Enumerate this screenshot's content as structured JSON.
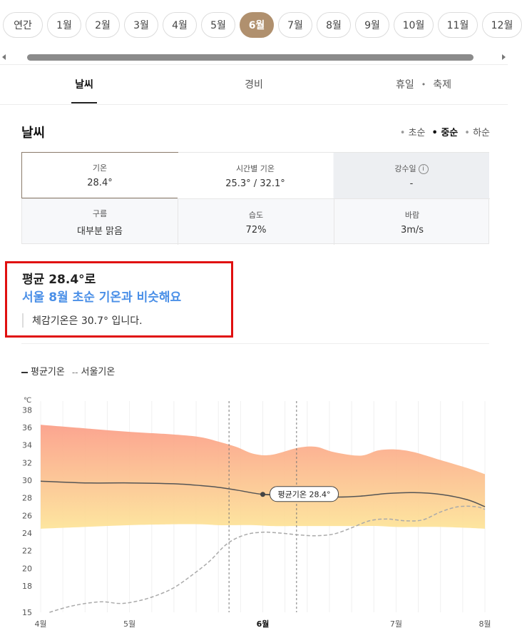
{
  "months": {
    "items": [
      "연간",
      "1월",
      "2월",
      "3월",
      "4월",
      "5월",
      "6월",
      "7월",
      "8월",
      "9월",
      "10월",
      "11월",
      "12월"
    ],
    "active_index": 6
  },
  "tabs": [
    {
      "label": "날씨",
      "active": true
    },
    {
      "label": "경비",
      "active": false
    },
    {
      "label": "휴일",
      "active": false
    },
    {
      "label": "축제",
      "active": false
    }
  ],
  "tab_separator": "•",
  "weather": {
    "title": "날씨",
    "periods": [
      {
        "label": "초순",
        "active": false
      },
      {
        "label": "중순",
        "active": true
      },
      {
        "label": "하순",
        "active": false
      }
    ],
    "period_bullet": "•",
    "cells": [
      {
        "label": "기온",
        "value": "28.4°",
        "selected": true
      },
      {
        "label": "시간별 기온",
        "value": "25.3° / 32.1°"
      },
      {
        "label": "강수일",
        "value": "-",
        "info_icon": "info-icon"
      },
      {
        "label": "구름",
        "value": "대부분 맑음"
      },
      {
        "label": "습도",
        "value": "72%"
      },
      {
        "label": "바람",
        "value": "3m/s"
      }
    ]
  },
  "summary": {
    "line1": "평균 28.4°로",
    "line2": "서울 8월 초순 기온과 비슷해요",
    "line3": "체감기온은 30.7° 입니다.",
    "accent_color": "#4a8fe7",
    "highlight_border_color": "#e01010"
  },
  "legend": {
    "solid_label": "평균기온",
    "dashed_label": "서울기온",
    "dash_glyph": "--"
  },
  "chart_data": {
    "type": "area",
    "unit_label": "℃",
    "y_ticks": [
      38,
      36,
      34,
      32,
      30,
      28,
      26,
      24,
      22,
      20,
      18,
      15
    ],
    "ylim": [
      15,
      39
    ],
    "x_labels": [
      {
        "label": "4월",
        "x": 0
      },
      {
        "label": "5월",
        "x": 1
      },
      {
        "label": "6월",
        "x": 2.5,
        "bold": true
      },
      {
        "label": "7월",
        "x": 4
      },
      {
        "label": "8월",
        "x": 5
      }
    ],
    "x_range": [
      0,
      5
    ],
    "band": {
      "x": [
        0,
        0.5,
        1,
        1.5,
        1.8,
        2.0,
        2.2,
        2.4,
        2.6,
        2.9,
        3.1,
        3.3,
        3.6,
        3.8,
        4.0,
        4.2,
        4.5,
        4.8,
        5
      ],
      "upper": [
        36.3,
        35.9,
        35.5,
        35.2,
        34.9,
        34.4,
        33.8,
        33.0,
        32.9,
        33.7,
        33.8,
        33.2,
        32.8,
        33.4,
        33.5,
        33.2,
        32.3,
        31.4,
        30.7
      ],
      "lower": [
        24.5,
        24.7,
        24.9,
        25.0,
        25.0,
        24.9,
        24.9,
        24.9,
        24.8,
        24.8,
        24.8,
        24.8,
        24.8,
        24.8,
        24.7,
        24.7,
        24.7,
        24.6,
        24.5
      ]
    },
    "series": [
      {
        "name": "평균기온",
        "style": "solid",
        "x": [
          0,
          0.5,
          1,
          1.5,
          1.8,
          2.0,
          2.2,
          2.5,
          2.8,
          3.0,
          3.3,
          3.6,
          3.9,
          4.2,
          4.5,
          4.8,
          5
        ],
        "y": [
          29.9,
          29.7,
          29.7,
          29.6,
          29.4,
          29.2,
          28.9,
          28.4,
          28.3,
          28.3,
          28.1,
          28.2,
          28.5,
          28.6,
          28.4,
          27.8,
          27.0
        ]
      },
      {
        "name": "서울기온",
        "style": "dashed",
        "x": [
          0.1,
          0.3,
          0.5,
          0.7,
          0.9,
          1.1,
          1.3,
          1.5,
          1.7,
          1.9,
          2.1,
          2.3,
          2.5,
          2.7,
          2.9,
          3.1,
          3.3,
          3.5,
          3.7,
          3.9,
          4.1,
          4.3,
          4.5,
          4.7,
          4.9,
          5
        ],
        "y": [
          15.0,
          15.6,
          16.0,
          16.2,
          16.0,
          16.3,
          16.9,
          17.8,
          19.2,
          20.8,
          22.8,
          23.8,
          24.1,
          24.0,
          23.8,
          23.7,
          23.9,
          24.6,
          25.4,
          25.6,
          25.4,
          25.5,
          26.4,
          27.0,
          27.0,
          26.7
        ]
      }
    ],
    "marker": {
      "x": 2.5,
      "y": 28.4,
      "label": "평균기온 28.4°"
    },
    "period_lines_x": [
      2.12,
      2.88
    ],
    "grid": true,
    "band_colors": {
      "top": "#fba08a",
      "bottom": "#fde49a"
    }
  }
}
